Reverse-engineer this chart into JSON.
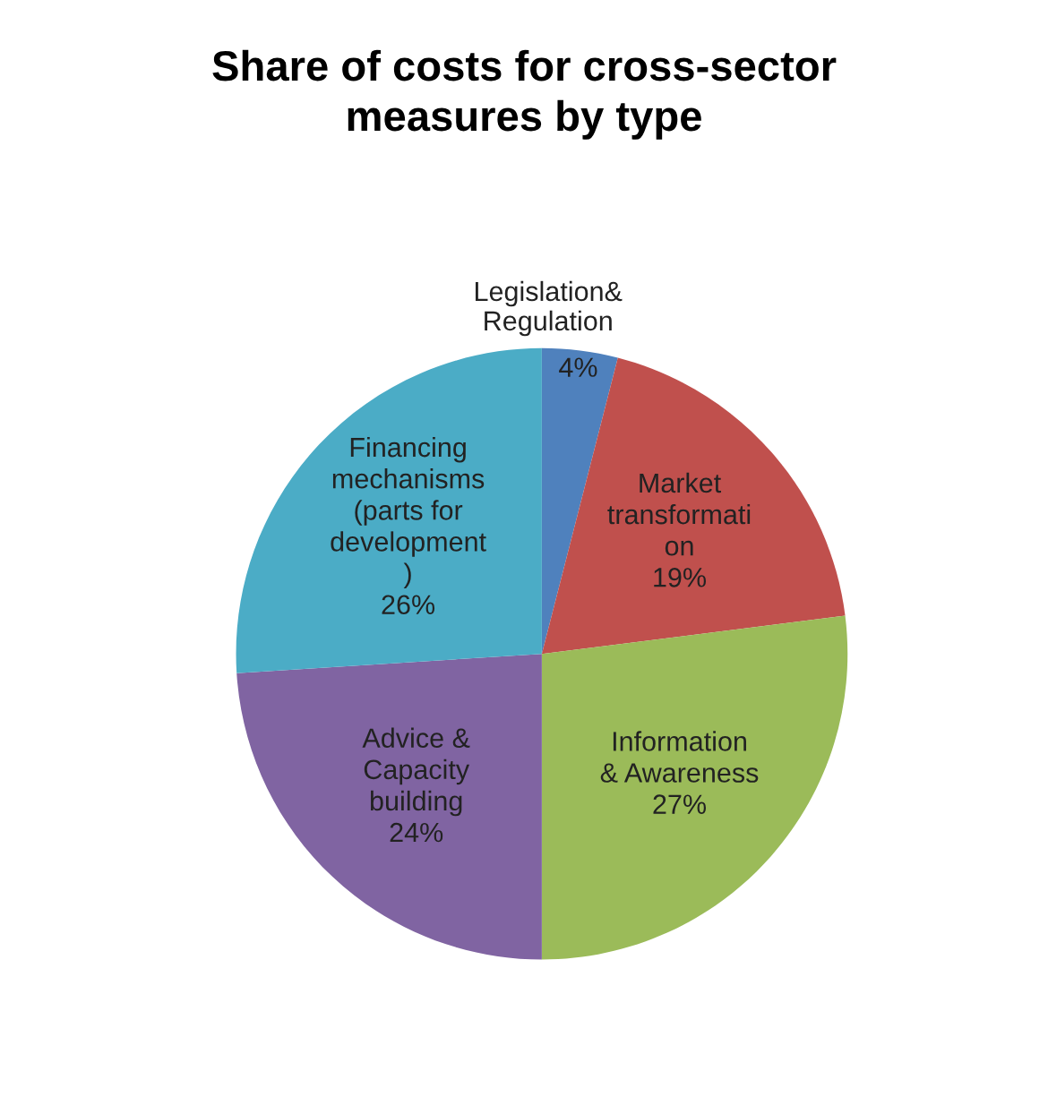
{
  "chart_data": {
    "type": "pie",
    "title": "Share of costs for cross-sector\nmeasures by type",
    "categories": [
      "Legislation&\nRegulation",
      "Market\ntransformati\non",
      "Information\n& Awareness",
      "Advice &\nCapacity\nbuilding",
      "Financing\nmechanisms\n(parts for\ndevelopment\n)"
    ],
    "values": [
      4,
      19,
      27,
      24,
      26
    ],
    "colors": [
      "#4f81bd",
      "#c0504d",
      "#9bbb59",
      "#8064a2",
      "#4bacc6"
    ],
    "value_labels": [
      "4%",
      "19%",
      "27%",
      "24%",
      "26%"
    ],
    "legend": false
  }
}
